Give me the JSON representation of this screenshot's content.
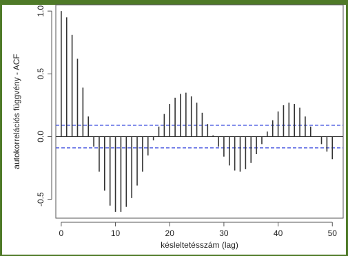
{
  "chart_data": {
    "type": "bar",
    "title": "",
    "xlabel": "késleltetésszám (lag)",
    "ylabel": "autokorrelációs függvény - ACF",
    "x_ticks": [
      "0",
      "10",
      "20",
      "30",
      "40",
      "50"
    ],
    "y_ticks": [
      "-0.5",
      "0.0",
      "0.5",
      "1.0"
    ],
    "xlim": [
      -1,
      52
    ],
    "ylim": [
      -0.65,
      1.05
    ],
    "lags": [
      0,
      1,
      2,
      3,
      4,
      5,
      6,
      7,
      8,
      9,
      10,
      11,
      12,
      13,
      14,
      15,
      16,
      17,
      18,
      19,
      20,
      21,
      22,
      23,
      24,
      25,
      26,
      27,
      28,
      29,
      30,
      31,
      32,
      33,
      34,
      35,
      36,
      37,
      38,
      39,
      40,
      41,
      42,
      43,
      44,
      45,
      46,
      47,
      48,
      49,
      50
    ],
    "acf": [
      1.0,
      0.95,
      0.81,
      0.62,
      0.39,
      0.16,
      -0.08,
      -0.28,
      -0.43,
      -0.55,
      -0.6,
      -0.6,
      -0.56,
      -0.49,
      -0.39,
      -0.28,
      -0.15,
      -0.03,
      0.08,
      0.18,
      0.26,
      0.31,
      0.34,
      0.35,
      0.32,
      0.27,
      0.19,
      0.1,
      0.01,
      -0.08,
      -0.16,
      -0.23,
      -0.27,
      -0.28,
      -0.26,
      -0.21,
      -0.14,
      -0.06,
      0.04,
      0.13,
      0.2,
      0.25,
      0.27,
      0.26,
      0.23,
      0.16,
      0.08,
      0.0,
      -0.06,
      -0.12,
      -0.18
    ],
    "confidence_band": 0.09,
    "colors": {
      "bars": "#333333",
      "band": "#3344dd",
      "frame": "#4f7a28"
    }
  }
}
